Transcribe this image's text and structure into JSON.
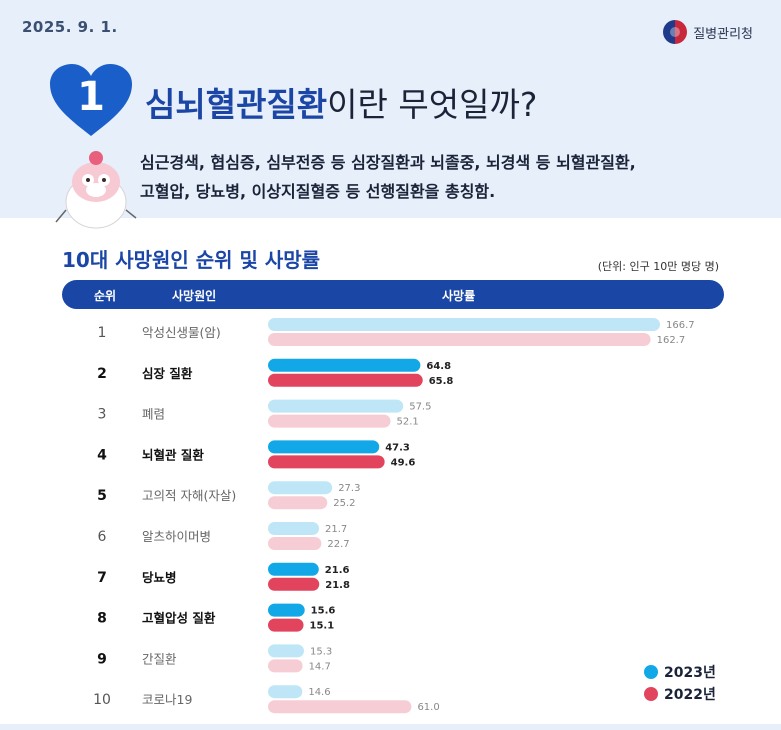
{
  "header": {
    "date": "2025. 9. 1.",
    "agency": "질병관리청"
  },
  "section": {
    "number": "1",
    "title_highlight": "심뇌혈관질환",
    "title_rest": "이란 무엇일까?",
    "desc_line1": "심근경색, 협심증, 심부전증 등 심장질환과 뇌졸중, 뇌경색 등 뇌혈관질환,",
    "desc_line2": "고혈압, 당뇨병, 이상지질혈증 등 선행질환을 총칭함."
  },
  "colors": {
    "accent_blue": "#1a47a6",
    "series_2023_bold": "#12a8e8",
    "series_2023_light": "#bfe6f7",
    "series_2022_bold": "#e2445e",
    "series_2022_light": "#f7cdd5"
  },
  "chart_data": {
    "type": "bar",
    "orientation": "horizontal",
    "title": "10대 사망원인 순위 및 사망률",
    "unit": "(단위: 인구 10만 명당 명)",
    "columns": {
      "rank": "순위",
      "cause": "사망원인",
      "rate": "사망률"
    },
    "categories": [
      {
        "rank": "1",
        "name": "악성신생물(암)",
        "highlight": false
      },
      {
        "rank": "2",
        "name": "심장 질환",
        "highlight": true
      },
      {
        "rank": "3",
        "name": "폐렴",
        "highlight": false
      },
      {
        "rank": "4",
        "name": "뇌혈관 질환",
        "highlight": true
      },
      {
        "rank": "5",
        "name": "고의적 자해(자살)",
        "highlight": false
      },
      {
        "rank": "6",
        "name": "알츠하이머병",
        "highlight": false
      },
      {
        "rank": "7",
        "name": "당뇨병",
        "highlight": true
      },
      {
        "rank": "8",
        "name": "고혈압성 질환",
        "highlight": true
      },
      {
        "rank": "9",
        "name": "간질환",
        "highlight": false
      },
      {
        "rank": "10",
        "name": "코로나19",
        "highlight": false
      }
    ],
    "series": [
      {
        "name": "2023년",
        "values": [
          166.7,
          64.8,
          57.5,
          47.3,
          27.3,
          21.7,
          21.6,
          15.6,
          15.3,
          14.6
        ]
      },
      {
        "name": "2022년",
        "values": [
          162.7,
          65.8,
          52.1,
          49.6,
          25.2,
          22.7,
          21.8,
          15.1,
          14.7,
          61.0
        ]
      }
    ],
    "value_labels_2023": [
      "166.7",
      "64.8",
      "57.5",
      "47.3",
      "27.3",
      "21.7",
      "21.6",
      "15.6",
      "15.3",
      "14.6"
    ],
    "value_labels_2022": [
      "162.7",
      "65.8",
      "52.1",
      "49.6",
      "25.2",
      "22.7",
      "21.8",
      "15.1",
      "14.7",
      "61.0"
    ],
    "xlim": [
      0,
      170
    ],
    "legend_position": "bottom-right",
    "grid": false
  }
}
